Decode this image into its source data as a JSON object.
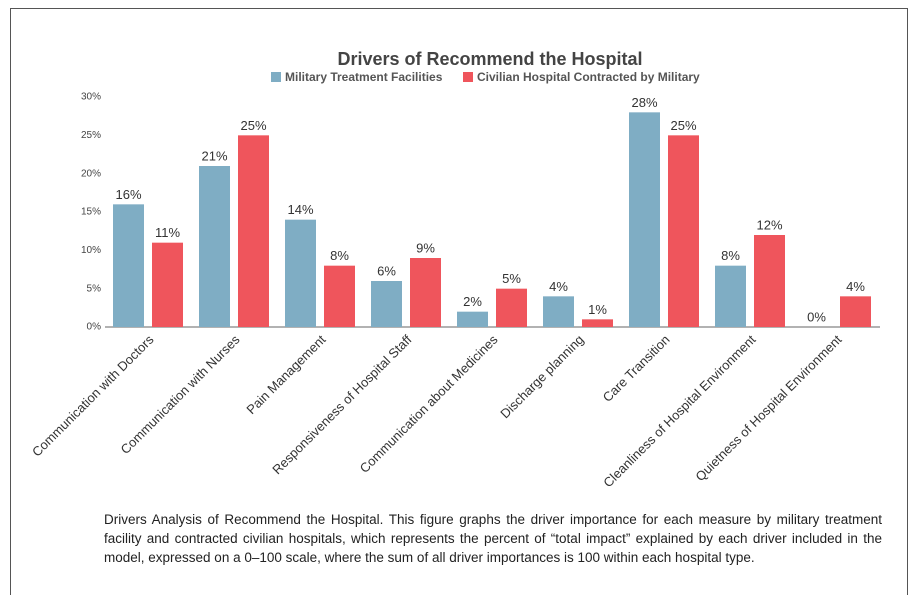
{
  "chart_data": {
    "type": "bar",
    "title": "Drivers of Recommend the Hospital",
    "categories": [
      "Communication with Doctors",
      "Communication with Nurses",
      "Pain Management",
      "Responsiveness of Hospital Staff",
      "Communication about Medicines",
      "Discharge planning",
      "Care Transition",
      "Cleanliness of Hospital Environment",
      "Quietness of Hospital Environment"
    ],
    "series": [
      {
        "name": "Military Treatment Facilities",
        "color": "#7fadc4",
        "values": [
          16,
          21,
          14,
          6,
          2,
          4,
          28,
          8,
          0
        ],
        "value_labels": [
          "16%",
          "21%",
          "14%",
          "6%",
          "2%",
          "4%",
          "28%",
          "8%",
          "0%"
        ]
      },
      {
        "name": "Civilian Hospital Contracted by Military",
        "color": "#ef555c",
        "values": [
          11,
          25,
          8,
          9,
          5,
          1,
          25,
          12,
          4
        ],
        "value_labels": [
          "11%",
          "25%",
          "8%",
          "9%",
          "5%",
          "1%",
          "25%",
          "12%",
          "4%"
        ]
      }
    ],
    "ylim": [
      0,
      30
    ],
    "yticks": [
      {
        "value": 0,
        "label": "0%"
      },
      {
        "value": 5,
        "label": "5%"
      },
      {
        "value": 10,
        "label": "10%"
      },
      {
        "value": 15,
        "label": "15%"
      },
      {
        "value": 20,
        "label": "20%"
      },
      {
        "value": 25,
        "label": "25%"
      },
      {
        "value": 30,
        "label": "30%"
      }
    ],
    "grid": false,
    "caption_title": "Drivers Analysis of Recommend the Hospital.",
    "caption_text": "This figure graphs the driver importance for each measure by military treatment facility and contracted civilian hospitals, which represents the percent of “total impact” explained by each driver included in the model, expressed on a 0–100 scale, where the sum of all driver importances is 100 within each hospital type."
  }
}
